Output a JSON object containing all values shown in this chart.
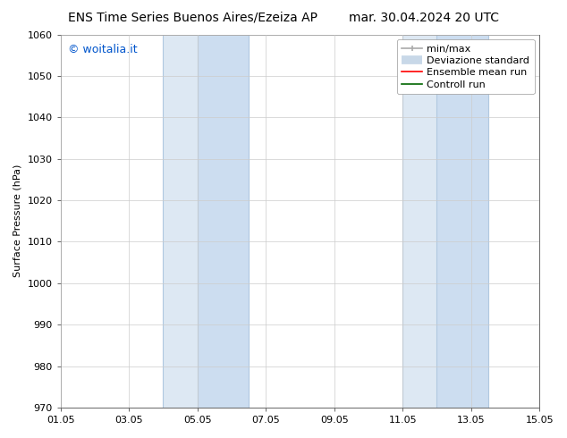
{
  "title_left": "ENS Time Series Buenos Aires/Ezeiza AP",
  "title_right": "mar. 30.04.2024 20 UTC",
  "ylabel": "Surface Pressure (hPa)",
  "ylim": [
    970,
    1060
  ],
  "yticks": [
    970,
    980,
    990,
    1000,
    1010,
    1020,
    1030,
    1040,
    1050,
    1060
  ],
  "xlim_start": 0,
  "xlim_end": 14,
  "xtick_labels": [
    "01.05",
    "03.05",
    "05.05",
    "07.05",
    "09.05",
    "11.05",
    "13.05",
    "15.05"
  ],
  "xtick_positions": [
    0,
    2,
    4,
    6,
    8,
    10,
    12,
    14
  ],
  "shaded_bands": [
    {
      "x_start": 3.0,
      "x_end": 4.0,
      "color": "#dde8f3"
    },
    {
      "x_start": 4.0,
      "x_end": 5.5,
      "color": "#ccddf0"
    },
    {
      "x_start": 10.0,
      "x_end": 11.0,
      "color": "#dde8f3"
    },
    {
      "x_start": 11.0,
      "x_end": 12.5,
      "color": "#ccddf0"
    }
  ],
  "shade_color": "#dce9f7",
  "shade_border_color": "#b0c8e0",
  "background_color": "#ffffff",
  "grid_color": "#cccccc",
  "watermark_text": "© woitalia.it",
  "watermark_color": "#0055cc",
  "legend_entries": [
    {
      "label": "min/max",
      "color": "#aaaaaa",
      "linestyle": "-",
      "linewidth": 1.2,
      "type": "minmax"
    },
    {
      "label": "Deviazione standard",
      "color": "#c8d8e8",
      "linestyle": "-",
      "linewidth": 7,
      "type": "band"
    },
    {
      "label": "Ensemble mean run",
      "color": "#ff0000",
      "linestyle": "-",
      "linewidth": 1.2,
      "type": "line"
    },
    {
      "label": "Controll run",
      "color": "#006600",
      "linestyle": "-",
      "linewidth": 1.2,
      "type": "line"
    }
  ],
  "title_fontsize": 10,
  "ylabel_fontsize": 8,
  "tick_fontsize": 8,
  "legend_fontsize": 8,
  "watermark_fontsize": 9
}
